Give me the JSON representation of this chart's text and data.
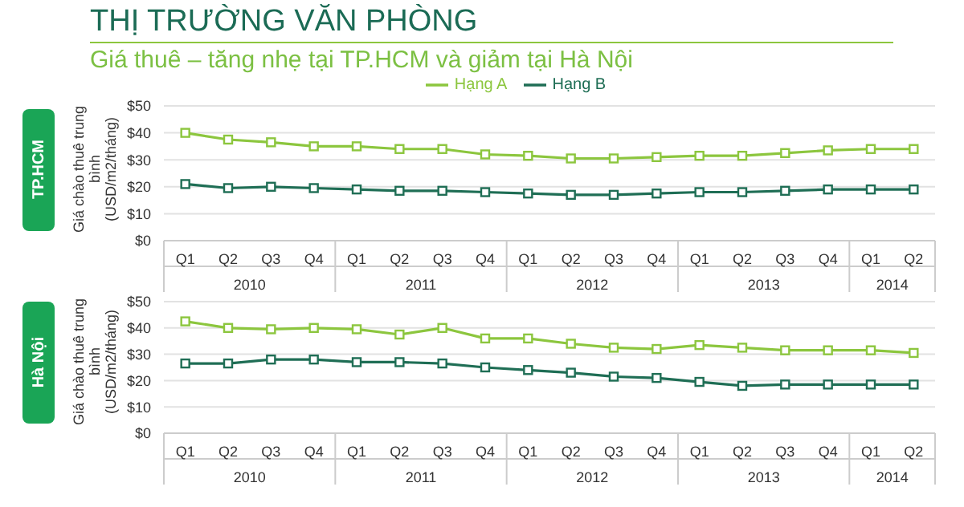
{
  "chart_data": [
    {
      "type": "line",
      "title": "THỊ TRƯỜNG VĂN PHÒNG",
      "subtitle": "Giá thuê – tăng nhẹ tại TP.HCM và giảm tại Hà Nội",
      "ylabel": "Giá chào thuê trung bình (USD/m2/tháng)",
      "annotations": [
        "TP.HCM",
        "2010",
        "2011",
        "2012",
        "2013",
        "2014"
      ],
      "categories": [
        "Q1",
        "Q2",
        "Q3",
        "Q4",
        "Q1",
        "Q2",
        "Q3",
        "Q4",
        "Q1",
        "Q2",
        "Q3",
        "Q4",
        "Q1",
        "Q2",
        "Q3",
        "Q4",
        "Q1",
        "Q2"
      ],
      "series": [
        {
          "name": "Hạng A",
          "color": "#8cc63e",
          "values": [
            40,
            37.5,
            36.5,
            35,
            35,
            34,
            34,
            32,
            31.5,
            30.5,
            30.5,
            31,
            31.5,
            31.5,
            32.5,
            33.5,
            34,
            34
          ]
        },
        {
          "name": "Hạng B",
          "color": "#1f6e55",
          "values": [
            21,
            19.5,
            20,
            19.5,
            19,
            18.5,
            18.5,
            18,
            17.5,
            17,
            17,
            17.5,
            18,
            18,
            18.5,
            19,
            19,
            19
          ]
        }
      ],
      "ylim": [
        0,
        50
      ],
      "yticks": [
        {
          "value": 0,
          "label": "$0"
        },
        {
          "value": 10,
          "label": "$10"
        },
        {
          "value": 20,
          "label": "$20"
        },
        {
          "value": 30,
          "label": "$30"
        },
        {
          "value": 40,
          "label": "$40"
        },
        {
          "value": 50,
          "label": "$50"
        }
      ],
      "grid": "y",
      "legend": "top",
      "marker": "square",
      "line_style": "solid"
    },
    {
      "type": "line",
      "ylabel": "Giá chào thuê trung bình (USD/m2/tháng)",
      "annotations": [
        "Hà Nội",
        "2010",
        "2011",
        "2012",
        "2013",
        "2014"
      ],
      "categories": [
        "Q1",
        "Q2",
        "Q3",
        "Q4",
        "Q1",
        "Q2",
        "Q3",
        "Q4",
        "Q1",
        "Q2",
        "Q3",
        "Q4",
        "Q1",
        "Q2",
        "Q3",
        "Q4",
        "Q1",
        "Q2"
      ],
      "series": [
        {
          "color": "#8cc63e",
          "values": [
            42.5,
            40,
            39.5,
            40,
            39.5,
            37.5,
            40,
            36,
            36,
            34,
            32.5,
            32,
            33.5,
            32.5,
            31.5,
            31.5,
            31.5,
            30.5
          ]
        },
        {
          "color": "#1f6e55",
          "values": [
            26.5,
            26.5,
            28,
            28,
            27,
            27,
            26.5,
            25,
            24,
            23,
            21.5,
            21,
            19.5,
            18,
            18.5,
            18.5,
            18.5,
            18.5
          ]
        }
      ],
      "ylim": [
        0,
        50
      ],
      "yticks": [
        {
          "value": 0,
          "label": "$0"
        },
        {
          "value": 10,
          "label": "$10"
        },
        {
          "value": 20,
          "label": "$20"
        },
        {
          "value": 30,
          "label": "$30"
        },
        {
          "value": 40,
          "label": "$40"
        },
        {
          "value": 50,
          "label": "$50"
        }
      ],
      "grid": "y",
      "legend": false,
      "marker": "square",
      "line_style": "solid"
    }
  ]
}
